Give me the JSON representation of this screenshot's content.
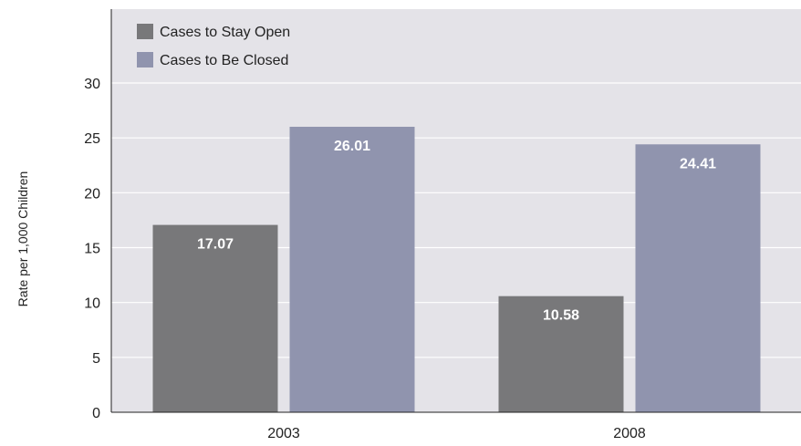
{
  "chart_data": {
    "type": "bar",
    "categories": [
      "2003",
      "2008"
    ],
    "series": [
      {
        "name": "Cases to Stay Open",
        "values": [
          17.07,
          10.58
        ],
        "color": "#78787a"
      },
      {
        "name": "Cases to Be Closed",
        "values": [
          26.01,
          24.41
        ],
        "color": "#9094ae"
      }
    ],
    "data_labels": [
      [
        "17.07",
        "10.58"
      ],
      [
        "26.01",
        "24.41"
      ]
    ],
    "ylabel": "Rate per 1,000 Children",
    "xlabel": "",
    "title": "",
    "ylim": [
      0,
      30
    ],
    "yticks": [
      0,
      5,
      10,
      15,
      20,
      25,
      30
    ],
    "grid": true,
    "legend_position": "top-left",
    "plot_background": "#e4e3e8",
    "gridline_color": "#ffffff",
    "data_label_color": "#ffffff"
  }
}
